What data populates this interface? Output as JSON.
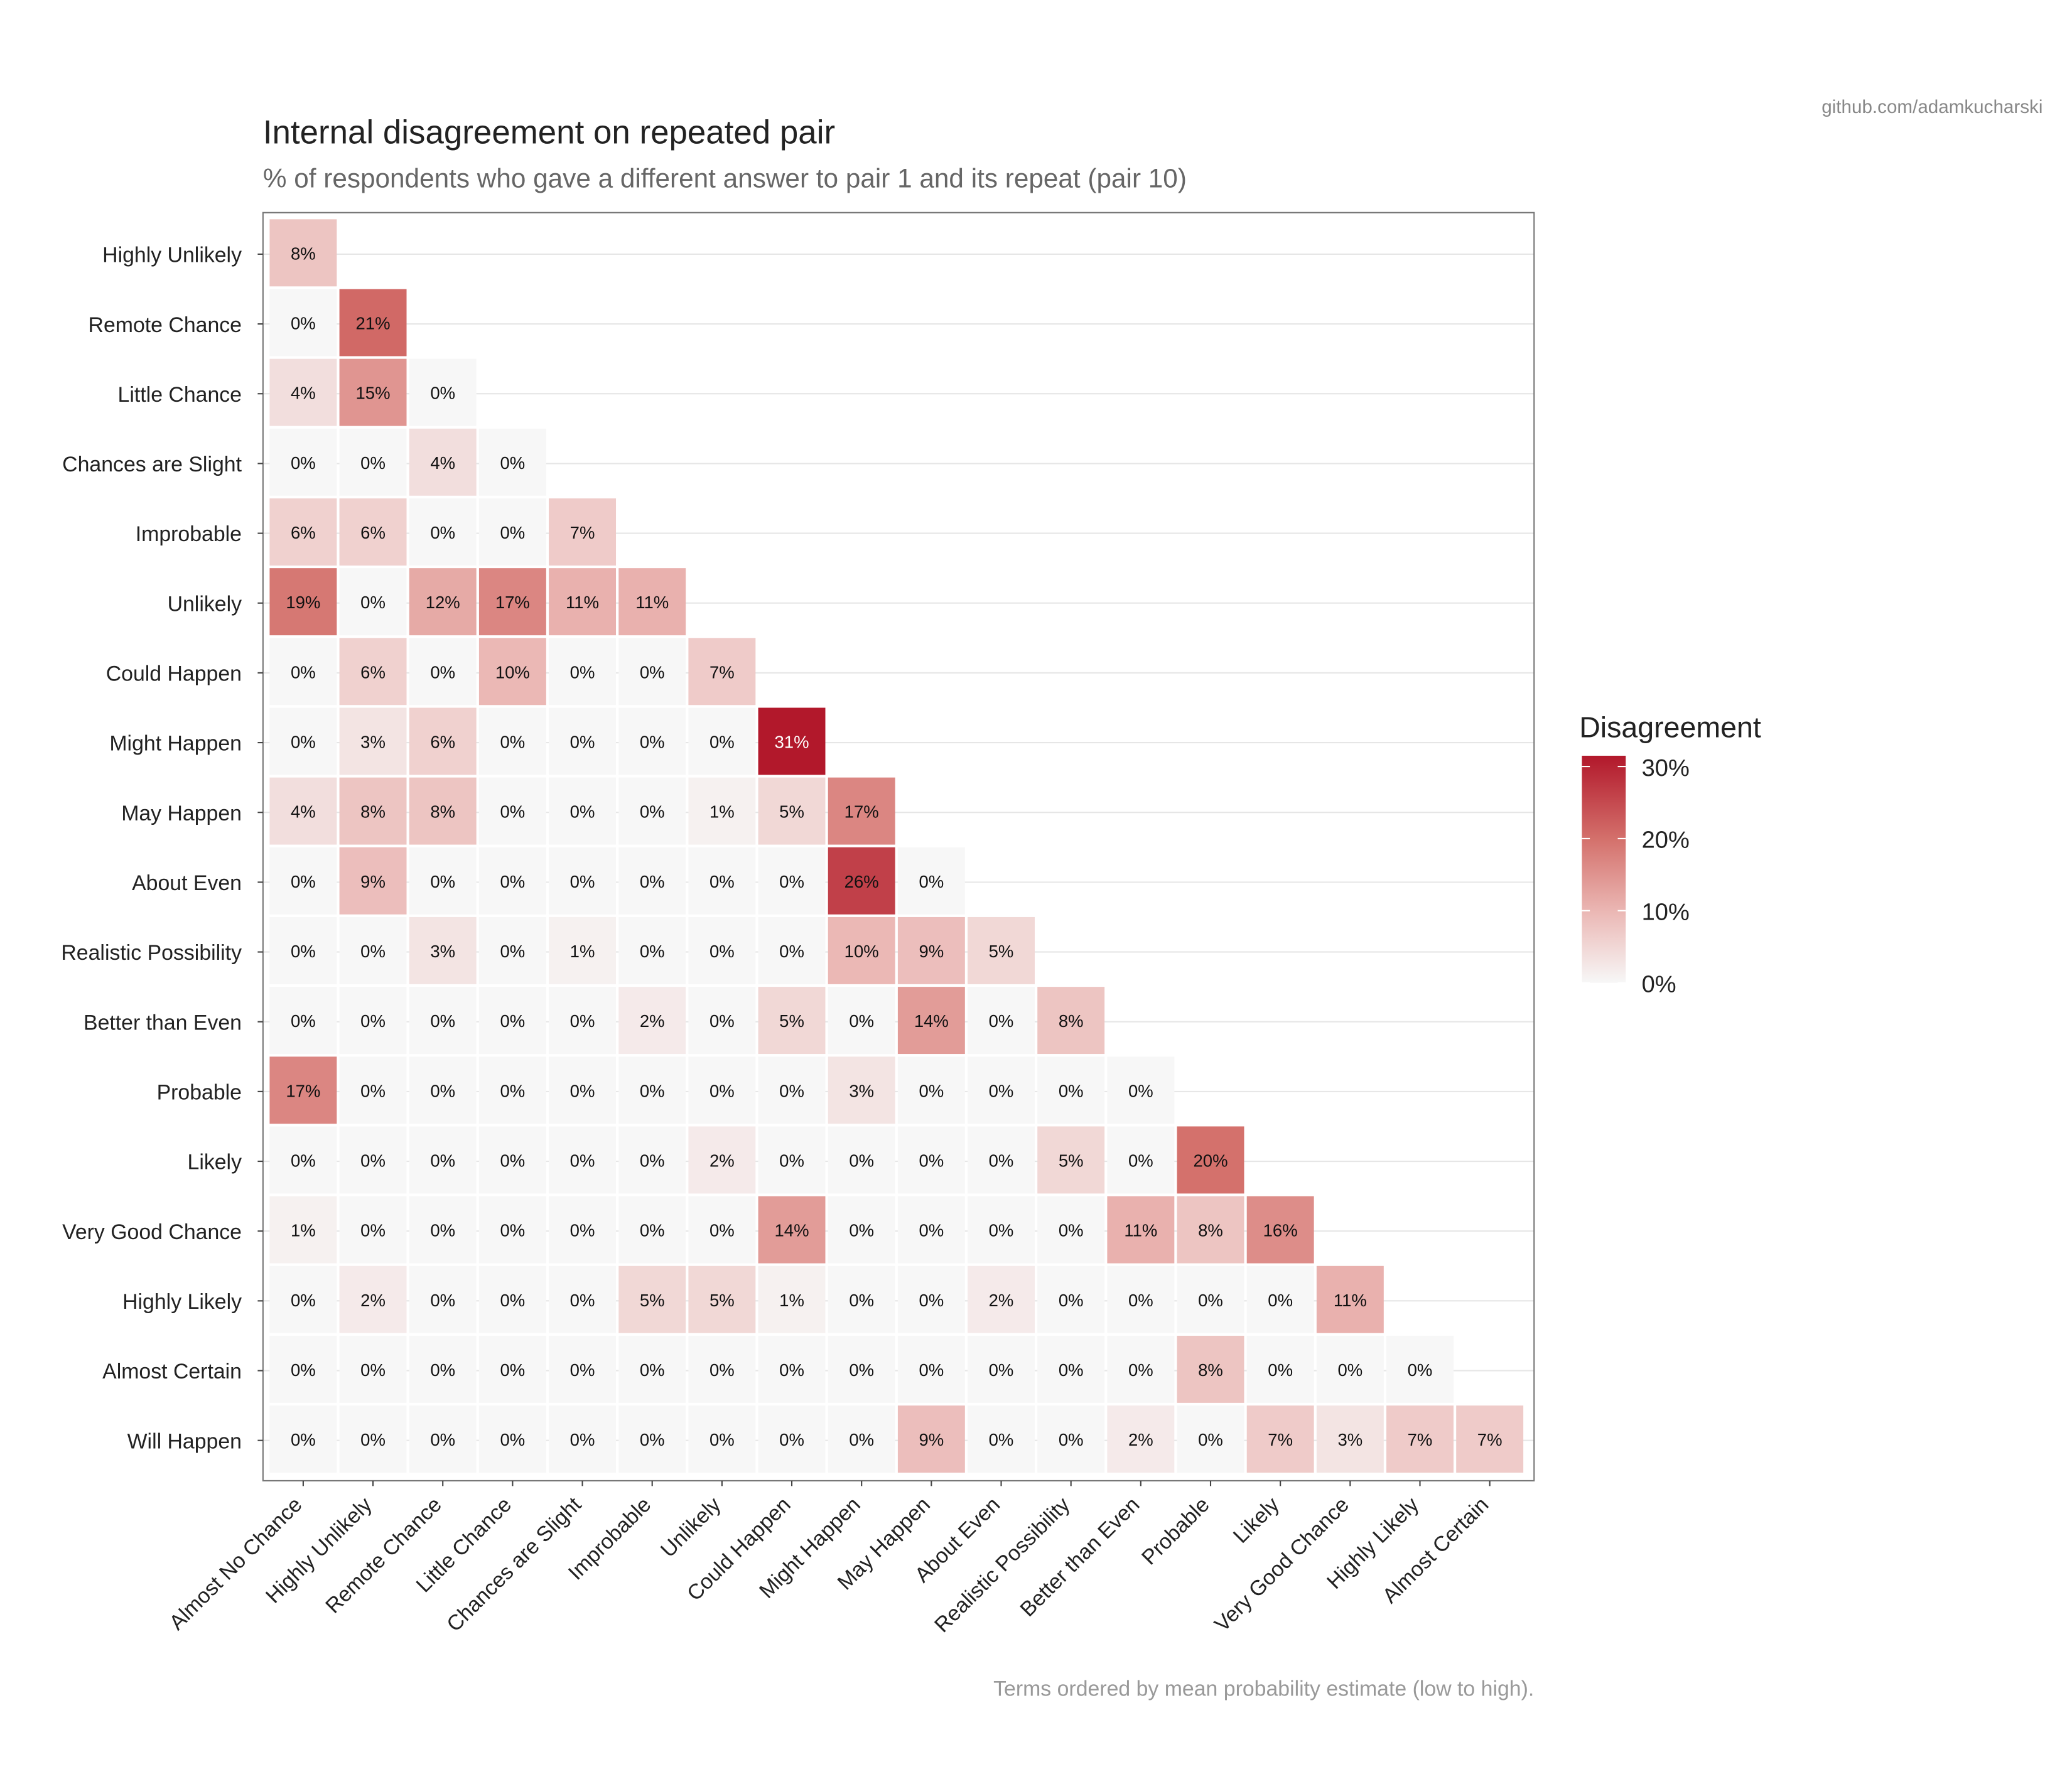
{
  "chart_data": {
    "type": "heatmap",
    "title": "Internal disagreement on repeated pair",
    "subtitle": "% of respondents who gave a different answer to pair 1 and its repeat (pair 10)",
    "caption": "Terms ordered by mean probability estimate (low to high).",
    "credit": "github.com/adamkucharski",
    "legend": {
      "title": "Disagreement",
      "ticks": [
        0,
        10,
        20,
        30
      ],
      "tick_labels": [
        "0%",
        "10%",
        "20%",
        "30%"
      ],
      "placement": "right",
      "colors": {
        "low": "#f7f7f7",
        "high": "#b2182b"
      }
    },
    "value_range": [
      0,
      31
    ],
    "grid": true,
    "x_categories": [
      "Almost No Chance",
      "Highly Unlikely",
      "Remote Chance",
      "Little Chance",
      "Chances are Slight",
      "Improbable",
      "Unlikely",
      "Could Happen",
      "Might Happen",
      "May Happen",
      "About Even",
      "Realistic Possibility",
      "Better than Even",
      "Probable",
      "Likely",
      "Very Good Chance",
      "Highly Likely",
      "Almost Certain"
    ],
    "y_categories": [
      "Highly Unlikely",
      "Remote Chance",
      "Little Chance",
      "Chances are Slight",
      "Improbable",
      "Unlikely",
      "Could Happen",
      "Might Happen",
      "May Happen",
      "About Even",
      "Realistic Possibility",
      "Better than Even",
      "Probable",
      "Likely",
      "Very Good Chance",
      "Highly Likely",
      "Almost Certain",
      "Will Happen"
    ],
    "values_percent": [
      [
        8
      ],
      [
        0,
        21
      ],
      [
        4,
        15,
        0
      ],
      [
        0,
        0,
        4,
        0
      ],
      [
        6,
        6,
        0,
        0,
        7
      ],
      [
        19,
        0,
        12,
        17,
        11,
        11
      ],
      [
        0,
        6,
        0,
        10,
        0,
        0,
        7
      ],
      [
        0,
        3,
        6,
        0,
        0,
        0,
        0,
        31
      ],
      [
        4,
        8,
        8,
        0,
        0,
        0,
        1,
        5,
        17
      ],
      [
        0,
        9,
        0,
        0,
        0,
        0,
        0,
        0,
        26,
        0
      ],
      [
        0,
        0,
        3,
        0,
        1,
        0,
        0,
        0,
        10,
        9,
        5
      ],
      [
        0,
        0,
        0,
        0,
        0,
        2,
        0,
        5,
        0,
        14,
        0,
        8
      ],
      [
        17,
        0,
        0,
        0,
        0,
        0,
        0,
        0,
        3,
        0,
        0,
        0,
        0
      ],
      [
        0,
        0,
        0,
        0,
        0,
        0,
        2,
        0,
        0,
        0,
        0,
        5,
        0,
        20
      ],
      [
        1,
        0,
        0,
        0,
        0,
        0,
        0,
        14,
        0,
        0,
        0,
        0,
        11,
        8,
        16
      ],
      [
        0,
        2,
        0,
        0,
        0,
        5,
        5,
        1,
        0,
        0,
        2,
        0,
        0,
        0,
        0,
        11
      ],
      [
        0,
        0,
        0,
        0,
        0,
        0,
        0,
        0,
        0,
        0,
        0,
        0,
        0,
        8,
        0,
        0,
        0
      ],
      [
        0,
        0,
        0,
        0,
        0,
        0,
        0,
        0,
        0,
        9,
        0,
        0,
        2,
        0,
        7,
        3,
        7,
        7
      ]
    ]
  }
}
